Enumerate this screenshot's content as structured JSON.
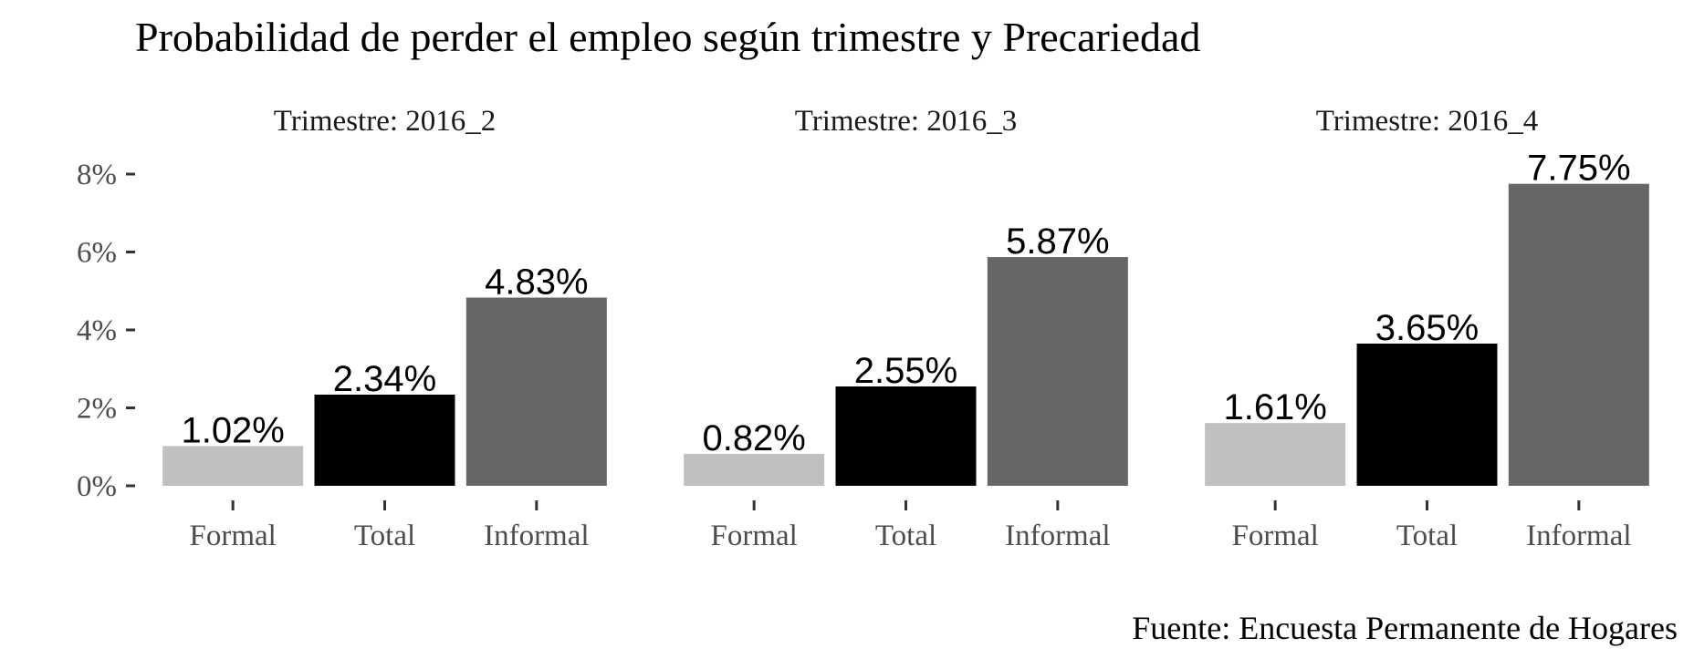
{
  "chart_data": {
    "type": "bar",
    "title": "Probabilidad de perder el empleo según trimestre y Precariedad",
    "caption": "Fuente: Encuesta Permanente de Hogares",
    "categories": [
      "Formal",
      "Total",
      "Informal"
    ],
    "category_colors": [
      "#c0c0c0",
      "#000000",
      "#666666"
    ],
    "ylim": [
      0,
      8
    ],
    "yticks": [
      0,
      2,
      4,
      6,
      8
    ],
    "ytick_labels": [
      "0%",
      "2%",
      "4%",
      "6%",
      "8%"
    ],
    "grid": false,
    "legend": "none",
    "panels": [
      {
        "strip": "Trimestre: 2016_2",
        "values": [
          1.02,
          2.34,
          4.83
        ],
        "labels": [
          "1.02%",
          "2.34%",
          "4.83%"
        ]
      },
      {
        "strip": "Trimestre: 2016_3",
        "values": [
          0.82,
          2.55,
          5.87
        ],
        "labels": [
          "0.82%",
          "2.55%",
          "5.87%"
        ]
      },
      {
        "strip": "Trimestre: 2016_4",
        "values": [
          1.61,
          3.65,
          7.75
        ],
        "labels": [
          "1.61%",
          "3.65%",
          "7.75%"
        ]
      }
    ]
  }
}
